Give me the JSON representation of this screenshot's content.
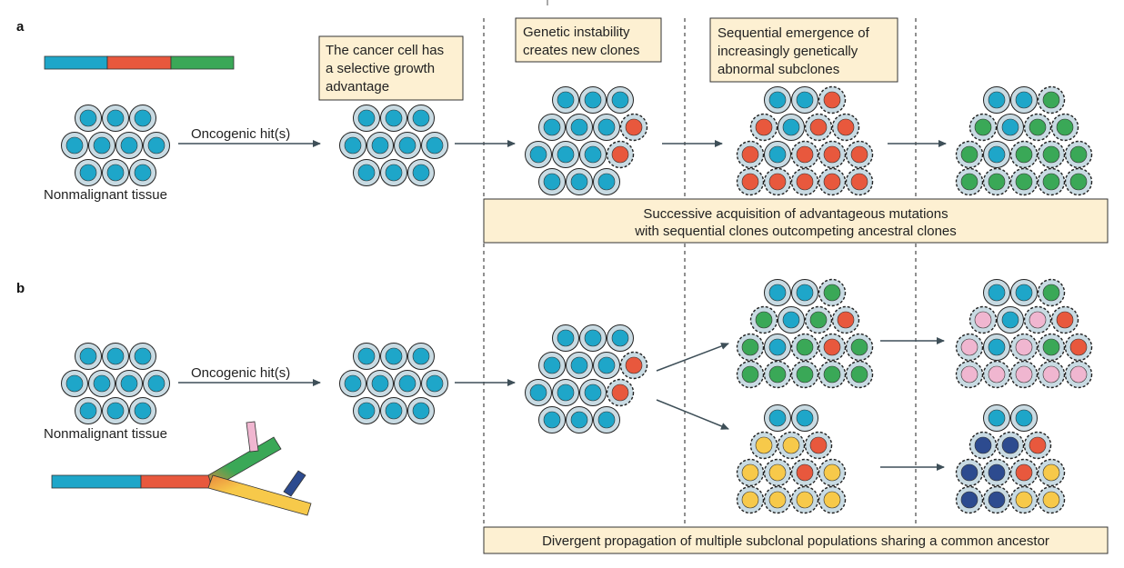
{
  "panels": {
    "a": {
      "letter": "a",
      "tissue_label": "Nonmalignant tissue",
      "hit_label": "Oncogenic hit(s)",
      "note_growth": [
        "The cancer cell has",
        "a selective growth",
        "advantage"
      ],
      "note_instability": [
        "Genetic instability",
        "creates new clones"
      ],
      "note_sequential": [
        "Sequential emergence of",
        "increasingly genetically",
        "abnormal subclones"
      ],
      "summary": [
        "Successive acquisition of advantageous mutations",
        "with sequential clones outcompeting ancestral clones"
      ]
    },
    "b": {
      "letter": "b",
      "tissue_label": "Nonmalignant tissue",
      "hit_label": "Oncogenic hit(s)",
      "summary": [
        "Divergent propagation of multiple subclonal populations sharing a common ancestor"
      ]
    }
  },
  "colors": {
    "teal": "#1ea6c9",
    "red": "#e8583d",
    "green": "#3aa857",
    "pink": "#f0b6d0",
    "yellow": "#f7c94a",
    "navy": "#2d4b8f",
    "cell_rim": "#c9dbe3",
    "note_fill": "#fdf0d2",
    "arrow": "#3e4f58"
  },
  "clusters": {
    "a_normal": [
      "t",
      "t",
      "t",
      "t",
      "t",
      "t",
      "t",
      "t",
      "t",
      "t"
    ],
    "a_hit": [
      "t",
      "t",
      "t",
      "t",
      "t",
      "t",
      "t",
      "t",
      "t",
      "t"
    ],
    "a_instab": [
      "t",
      "t",
      "t",
      "t",
      "t",
      "t",
      "r",
      "t",
      "t",
      "t",
      "r",
      "t",
      "t",
      "t"
    ],
    "a_seq": [
      "t",
      "t",
      "r",
      "r",
      "t",
      "r",
      "r",
      "r",
      "t",
      "r",
      "r",
      "r",
      "r",
      "r",
      "r",
      "r",
      "r"
    ],
    "a_final": [
      "t",
      "t",
      "g",
      "g",
      "t",
      "g",
      "g",
      "g",
      "t",
      "g",
      "g",
      "g",
      "g",
      "g",
      "g",
      "g",
      "g"
    ],
    "b_normal": [
      "t",
      "t",
      "t",
      "t",
      "t",
      "t",
      "t",
      "t",
      "t",
      "t"
    ],
    "b_hit": [
      "t",
      "t",
      "t",
      "t",
      "t",
      "t",
      "t",
      "t",
      "t",
      "t"
    ],
    "b_instab": [
      "t",
      "t",
      "t",
      "t",
      "t",
      "t",
      "r",
      "t",
      "t",
      "t",
      "r",
      "t",
      "t",
      "t"
    ],
    "b_upper1": [
      "t",
      "t",
      "g",
      "g",
      "t",
      "g",
      "r",
      "g",
      "t",
      "g",
      "r",
      "g",
      "g",
      "g",
      "g",
      "g",
      "g"
    ],
    "b_upper2": [
      "t",
      "t",
      "g",
      "p",
      "t",
      "p",
      "r",
      "p",
      "t",
      "p",
      "g",
      "r",
      "p",
      "p",
      "p",
      "p",
      "p"
    ],
    "b_lower1": [
      "t",
      "t",
      "y",
      "y",
      "r",
      "y",
      "y",
      "r",
      "y",
      "y",
      "y",
      "y",
      "y"
    ],
    "b_lower2": [
      "t",
      "t",
      "n",
      "n",
      "r",
      "n",
      "n",
      "r",
      "y",
      "n",
      "n",
      "y",
      "y"
    ]
  }
}
